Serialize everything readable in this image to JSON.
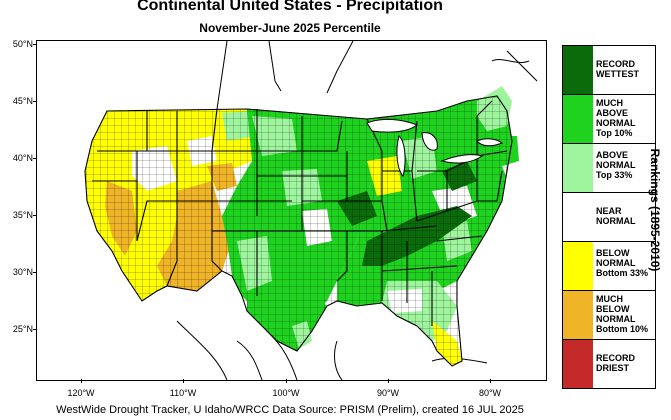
{
  "title": "Continental United States - Precipitation",
  "subtitle": "November-June 2025 Percentile",
  "footer": "WestWide Drought Tracker, U Idaho/WRCC Data Source: PRISM (Prelim), created 16 JUL 2025",
  "side_label": "Rankings (1895-2010)",
  "lat_labels": [
    "50°N",
    "45°N",
    "40°N",
    "35°N",
    "30°N",
    "25°N"
  ],
  "lon_labels": [
    "120°W",
    "110°W",
    "100°W",
    "90°W",
    "80°W"
  ],
  "legend": [
    {
      "label": "RECORD\nWETTEST",
      "color": "#0b6b0b"
    },
    {
      "label": "MUCH\nABOVE\nNORMAL\nTop 10%",
      "color": "#1fd21f"
    },
    {
      "label": "ABOVE\nNORMAL\nTop 33%",
      "color": "#9ef59e"
    },
    {
      "label": "NEAR\nNORMAL",
      "color": "#ffffff"
    },
    {
      "label": "BELOW\nNORMAL\nBottom 33%",
      "color": "#ffff00"
    },
    {
      "label": "MUCH\nBELOW\nNORMAL\nBottom 10%",
      "color": "#f0b428"
    },
    {
      "label": "RECORD\nDRIEST",
      "color": "#c42a2a"
    }
  ],
  "colors": {
    "record_wet": "#0b6b0b",
    "much_above": "#1fd21f",
    "above": "#9ef59e",
    "near": "#ffffff",
    "below": "#ffff00",
    "much_below": "#f0b428",
    "record_dry": "#c42a2a"
  }
}
